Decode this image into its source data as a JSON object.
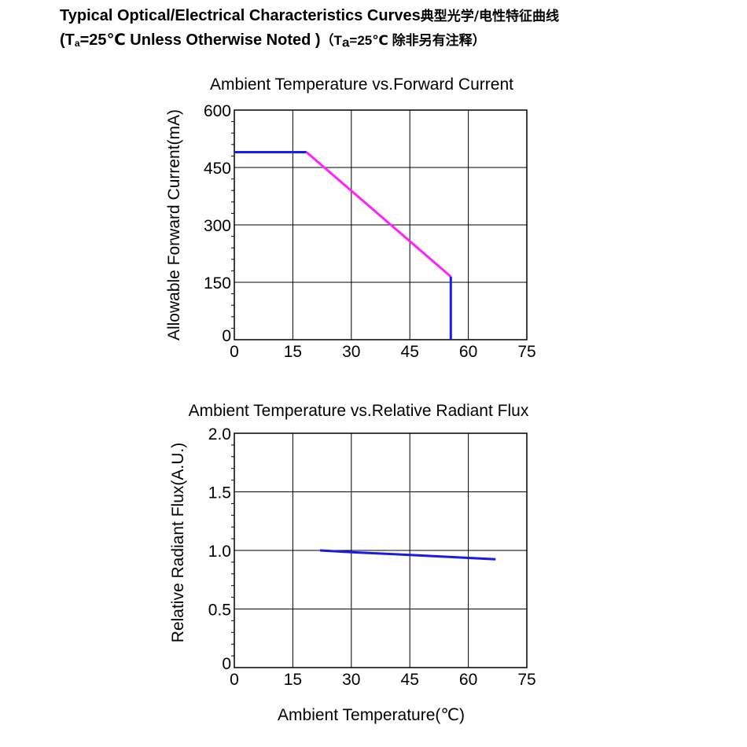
{
  "header": {
    "line1_en": "Typical Optical/Electrical Characteristics Curves",
    "line1_cn": "典型光学/电性特征曲线",
    "line2_open": "(T",
    "line2_sub": "a",
    "line2_mid": "=25℃ Unless Otherwise Noted )",
    "line2_note_open": "（T",
    "line2_note_sub": "a",
    "line2_note_rest": "=25℃ 除非另有注释）"
  },
  "chart_data": [
    {
      "type": "line",
      "title": "Ambient Temperature vs.Forward Current",
      "xlabel": "",
      "ylabel": "Allowable Forward Current(mA)",
      "xlim": [
        0,
        75
      ],
      "ylim": [
        0,
        600
      ],
      "xticks": [
        0,
        15,
        30,
        45,
        60,
        75
      ],
      "yticks": [
        0,
        150,
        300,
        450,
        600
      ],
      "grid": true,
      "series": [
        {
          "color": "#1a1aff",
          "x": [
            0,
            18.5
          ],
          "y": [
            490,
            490
          ]
        },
        {
          "color": "#ff22ff",
          "x": [
            18.5,
            55.5
          ],
          "y": [
            490,
            165
          ]
        },
        {
          "color": "#1a1aff",
          "x": [
            55.5,
            55.5
          ],
          "y": [
            165,
            0
          ]
        }
      ]
    },
    {
      "type": "line",
      "title": "Ambient Temperature vs.Relative Radiant Flux",
      "xlabel": "Ambient Temperature(℃)",
      "ylabel": "Relative Radiant Flux(A.U.)",
      "xlim": [
        0,
        75
      ],
      "ylim": [
        0,
        2.0
      ],
      "xticks": [
        0,
        15,
        30,
        45,
        60,
        75
      ],
      "yticks": [
        0,
        0.5,
        1.0,
        1.5,
        2.0
      ],
      "ytick_labels": [
        "0",
        "0.5",
        "1.0",
        "1.5",
        "2.0"
      ],
      "grid": true,
      "series": [
        {
          "color": "#1a1ae6",
          "x": [
            22,
            30,
            45,
            55,
            67
          ],
          "y": [
            1.0,
            0.985,
            0.962,
            0.945,
            0.925
          ]
        }
      ]
    }
  ]
}
